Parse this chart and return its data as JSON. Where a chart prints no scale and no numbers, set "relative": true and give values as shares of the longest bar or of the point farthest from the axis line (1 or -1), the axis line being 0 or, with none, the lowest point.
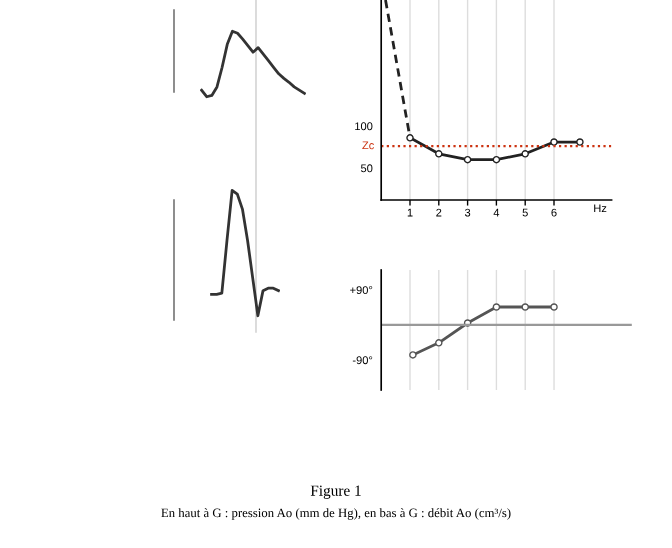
{
  "chart_data": [
    {
      "type": "line",
      "relative": true,
      "categories": [
        null,
        null,
        null,
        null,
        null,
        null,
        null,
        null,
        null,
        null,
        null,
        null,
        null,
        null,
        null,
        null,
        null,
        null,
        null,
        null,
        null
      ],
      "series": [
        {
          "color": "#333333",
          "values": [
            0.1,
            0.0,
            0.02,
            0.15,
            0.45,
            0.8,
            1.0,
            0.97,
            0.88,
            0.78,
            0.68,
            0.75,
            0.65,
            0.55,
            0.45,
            0.35,
            0.28,
            0.22,
            0.15,
            0.1,
            0.05
          ]
        }
      ]
    },
    {
      "type": "line",
      "relative": true,
      "categories": [
        null,
        null,
        null,
        null,
        null,
        null,
        null,
        null,
        null,
        null,
        null,
        null,
        null,
        null
      ],
      "series": [
        {
          "color": "#333333",
          "values": [
            0.17,
            0.17,
            0.18,
            0.6,
            1.0,
            0.97,
            0.85,
            0.6,
            0.3,
            0.0,
            0.2,
            0.22,
            0.22,
            0.2
          ]
        }
      ]
    },
    {
      "type": "line",
      "xlabel": "Hz",
      "xlim": [
        0,
        8
      ],
      "ylim": [
        12,
        250
      ],
      "xticks": [
        1,
        2,
        3,
        4,
        5,
        6
      ],
      "yticks": [
        100,
        50
      ],
      "grid": "x",
      "series": [
        {
          "color": "#222222",
          "line_style": "dashed",
          "x": [
            0.15,
            1
          ],
          "values": [
            250,
            86
          ]
        },
        {
          "color": "#222222",
          "line_style": "solid",
          "marker": "circle",
          "x": [
            1,
            2,
            3,
            4,
            5,
            6,
            6.9
          ],
          "values": [
            86,
            67,
            60,
            60,
            67,
            81,
            81
          ]
        }
      ],
      "ref_lines": [
        {
          "axis": "y",
          "value": 76,
          "label": "Zc",
          "color": "#cc3311",
          "line_style": "dotted"
        }
      ]
    },
    {
      "type": "line",
      "xlim": [
        0,
        8.7
      ],
      "ylim": [
        -167,
        141
      ],
      "xticks": [
        1,
        2,
        3,
        4,
        5,
        6
      ],
      "yticks": [
        {
          "value": 90,
          "label": "+90°"
        },
        {
          "value": -90,
          "label": "-90°"
        }
      ],
      "grid": "x",
      "tick_labels": "y",
      "series": [
        {
          "color": "#555555",
          "marker": "circle",
          "x": [
            1.1,
            2,
            3,
            4,
            5,
            6
          ],
          "values": [
            -77,
            -46,
            5,
            46,
            46,
            46
          ]
        }
      ],
      "ref_lines": [
        {
          "axis": "y",
          "value": 0,
          "color": "#999999"
        }
      ],
      "annotations": [
        "Figure 1",
        "En haut à G : pression Ao (mm de Hg), en bas à G : débit Ao (cm³/s)"
      ]
    }
  ]
}
